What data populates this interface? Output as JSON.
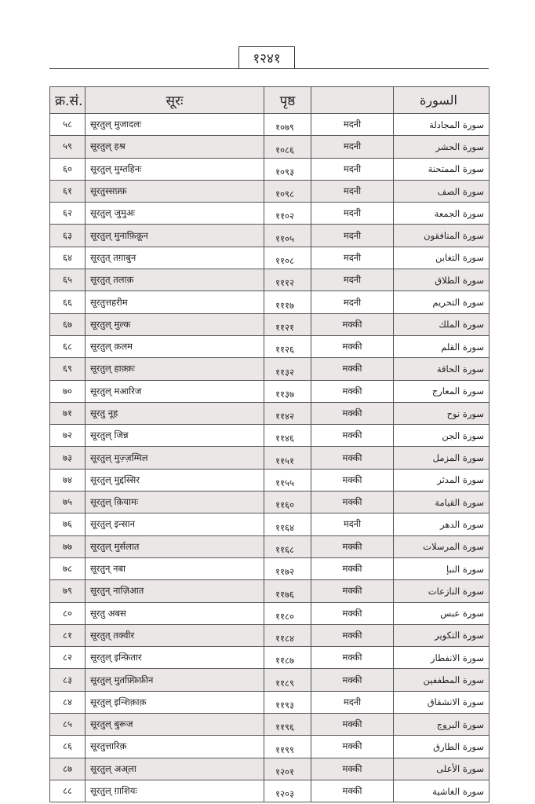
{
  "page_number": "१२४१",
  "table": {
    "headers": {
      "serial": "क्र.सं.",
      "surah": "सूरः",
      "page": "पृष्ठ",
      "type": "",
      "arabic": "السورة"
    },
    "rows": [
      {
        "serial": "५८",
        "surah": "सूरतुल् मुजादलः",
        "page": "१०७९",
        "type": "मदनी",
        "arabic": "سورة المجادلة"
      },
      {
        "serial": "५९",
        "surah": "सूरतुल् हश्र",
        "page": "१०८६",
        "type": "मदनी",
        "arabic": "سورة الحشر"
      },
      {
        "serial": "६०",
        "surah": "सूरतुल् मुम्तहिनः",
        "page": "१०९३",
        "type": "मदनी",
        "arabic": "سورة الممتحنة"
      },
      {
        "serial": "६१",
        "surah": "सूरतुस्सफ़्फ़",
        "page": "१०९८",
        "type": "मदनी",
        "arabic": "سورة الصف"
      },
      {
        "serial": "६२",
        "surah": "सूरतुल् जुमुअः",
        "page": "११०२",
        "type": "मदनी",
        "arabic": "سورة الجمعة"
      },
      {
        "serial": "६३",
        "surah": "सूरतुल् मुनाफ़िक़ून",
        "page": "११०५",
        "type": "मदनी",
        "arabic": "سورة المنافقون"
      },
      {
        "serial": "६४",
        "surah": "सूरतुत् तग़ाबुन",
        "page": "११०८",
        "type": "मदनी",
        "arabic": "سورة التغابن"
      },
      {
        "serial": "६५",
        "surah": "सूरतुत् तलाक़",
        "page": "१११२",
        "type": "मदनी",
        "arabic": "سورة الطلاق"
      },
      {
        "serial": "६६",
        "surah": "सूरतुत्तहरीम",
        "page": "१११७",
        "type": "मदनी",
        "arabic": "سورة التحريم"
      },
      {
        "serial": "६७",
        "surah": "सूरतुल् मुल्क",
        "page": "११२१",
        "type": "मक्की",
        "arabic": "سورة الملك"
      },
      {
        "serial": "६८",
        "surah": "सूरतुल् क़लम",
        "page": "११२६",
        "type": "मक्की",
        "arabic": "سورة القلم"
      },
      {
        "serial": "६९",
        "surah": "सूरतुल् हाक़्क़ः",
        "page": "११३२",
        "type": "मक्की",
        "arabic": "سورة الحاقة"
      },
      {
        "serial": "७०",
        "surah": "सूरतुल् मआरिज",
        "page": "११३७",
        "type": "मक्की",
        "arabic": "سورة المعارج"
      },
      {
        "serial": "७१",
        "surah": "सूरतु नूह",
        "page": "११४२",
        "type": "मक्की",
        "arabic": "سورة نوح"
      },
      {
        "serial": "७२",
        "surah": "सूरतुल् जिन्न",
        "page": "११४६",
        "type": "मक्की",
        "arabic": "سورة الجن"
      },
      {
        "serial": "७३",
        "surah": "सूरतुल् मुज़्ज़म्मिल",
        "page": "११५१",
        "type": "मक्की",
        "arabic": "سورة المزمل"
      },
      {
        "serial": "७४",
        "surah": "सूरतुल् मुद्दस्सिर",
        "page": "११५५",
        "type": "मक्की",
        "arabic": "سورة المدثر"
      },
      {
        "serial": "७५",
        "surah": "सूरतुल् क़ियामः",
        "page": "११६०",
        "type": "मक्की",
        "arabic": "سورة القيامة"
      },
      {
        "serial": "७६",
        "surah": "सूरतुल् इन्सान",
        "page": "११६४",
        "type": "मदनी",
        "arabic": "سورة الدهر"
      },
      {
        "serial": "७७",
        "surah": "सूरतुल् मुर्सलात",
        "page": "११६८",
        "type": "मक्की",
        "arabic": "سورة المرسلات"
      },
      {
        "serial": "७८",
        "surah": "सूरतुन् नबा",
        "page": "११७२",
        "type": "मक्की",
        "arabic": "سورة النبإ"
      },
      {
        "serial": "७९",
        "surah": "सूरतुन् नाज़िआत",
        "page": "११७६",
        "type": "मक्की",
        "arabic": "سورة النازعات"
      },
      {
        "serial": "८०",
        "surah": "सूरतु अबस",
        "page": "११८०",
        "type": "मक्की",
        "arabic": "سورة عبس"
      },
      {
        "serial": "८१",
        "surah": "सूरतुत् तक्वीर",
        "page": "११८४",
        "type": "मक्की",
        "arabic": "سورة التكوير"
      },
      {
        "serial": "८२",
        "surah": "सूरतुल् इन्फ़ितार",
        "page": "११८७",
        "type": "मक्की",
        "arabic": "سورة الانفطار"
      },
      {
        "serial": "८३",
        "surah": "सूरतुल् मुतफ़्फ़िफ़ीन",
        "page": "११८९",
        "type": "मक्की",
        "arabic": "سورة المطففين"
      },
      {
        "serial": "८४",
        "surah": "सूरतुल् इन्शिक़ाक़",
        "page": "११९३",
        "type": "मदनी",
        "arabic": "سورة الانشقاق"
      },
      {
        "serial": "८५",
        "surah": "सूरतुल् बुरूज",
        "page": "११९६",
        "type": "मक्की",
        "arabic": "سورة البروج"
      },
      {
        "serial": "८६",
        "surah": "सूरतुत्तारिक़",
        "page": "११९९",
        "type": "मक्की",
        "arabic": "سورة الطارق"
      },
      {
        "serial": "८७",
        "surah": "सूरतुल् अअ्ला",
        "page": "१२०१",
        "type": "मक्की",
        "arabic": "سورة الأعلى"
      },
      {
        "serial": "८८",
        "surah": "सूरतुल् ग़ाशियः",
        "page": "१२०३",
        "type": "मक्की",
        "arabic": "سورة الغاشية"
      }
    ]
  }
}
